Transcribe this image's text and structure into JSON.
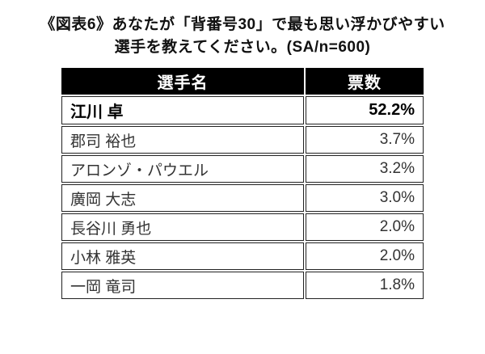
{
  "title": {
    "line1": "《図表6》あなたが「背番号30」で最も思い浮かびやすい",
    "line2": "選手を教えてください。(SA/n=600)"
  },
  "table": {
    "headers": [
      "選手名",
      "票数"
    ],
    "rows": [
      {
        "name": "江川 卓",
        "value": "52.2%"
      },
      {
        "name": "郡司 裕也",
        "value": "3.7%"
      },
      {
        "name": "アロンゾ・パウエル",
        "value": "3.2%"
      },
      {
        "name": "廣岡 大志",
        "value": "3.0%"
      },
      {
        "name": "長谷川 勇也",
        "value": "2.0%"
      },
      {
        "name": "小林 雅英",
        "value": "2.0%"
      },
      {
        "name": "一岡 竜司",
        "value": "1.8%"
      }
    ]
  },
  "chart_data": {
    "type": "table",
    "title": "《図表6》あなたが「背番号30」で最も思い浮かびやすい選手を教えてください。(SA/n=600)",
    "columns": [
      "選手名",
      "票数"
    ],
    "categories": [
      "江川 卓",
      "郡司 裕也",
      "アロンゾ・パウエル",
      "廣岡 大志",
      "長谷川 勇也",
      "小林 雅英",
      "一岡 竜司"
    ],
    "values_percent": [
      52.2,
      3.7,
      3.2,
      3.0,
      2.0,
      2.0,
      1.8
    ],
    "sample_note": "SA/n=600",
    "emphasized_row": "江川 卓"
  },
  "colors": {
    "header_bg": "#000000",
    "header_text": "#ffffff",
    "cell_border": "#222222",
    "row_text": "#333333",
    "emphasis_text": "#000000",
    "background": "#ffffff"
  }
}
